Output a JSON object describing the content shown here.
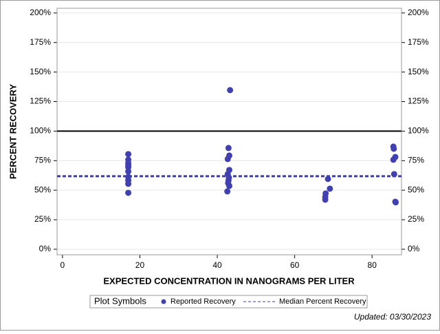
{
  "chart_data": {
    "type": "scatter",
    "x_label": "EXPECTED CONCENTRATION IN NANOGRAMS PER LITER",
    "y_label": "PERCENT RECOVERY",
    "xlim": [
      -1.4,
      87.6
    ],
    "xticks": [
      0,
      20,
      40,
      60,
      80
    ],
    "ylim": [
      -4.7,
      204
    ],
    "yticks": [
      {
        "value": 0,
        "label": "0%"
      },
      {
        "value": 25,
        "label": "25%"
      },
      {
        "value": 50,
        "label": "50%"
      },
      {
        "value": 75,
        "label": "75%"
      },
      {
        "value": 100,
        "label": "100%"
      },
      {
        "value": 125,
        "label": "125%"
      },
      {
        "value": 150,
        "label": "150%"
      },
      {
        "value": 175,
        "label": "175%"
      },
      {
        "value": 200,
        "label": "200%"
      }
    ],
    "y2lim": [
      -4.7,
      204
    ],
    "y2ticks": [
      {
        "value": 0,
        "label": "0%"
      },
      {
        "value": 25,
        "label": "25%"
      },
      {
        "value": 50,
        "label": "50%"
      },
      {
        "value": 75,
        "label": "75%"
      },
      {
        "value": 100,
        "label": "100%"
      },
      {
        "value": 125,
        "label": "125%"
      },
      {
        "value": 150,
        "label": "150%"
      },
      {
        "value": 175,
        "label": "175%"
      },
      {
        "value": 200,
        "label": "200%"
      }
    ],
    "grid": true,
    "series": [
      {
        "name": "Reported Recovery",
        "color": "#4040b0",
        "x": [
          17,
          17,
          17,
          17,
          17,
          17,
          17,
          17,
          17,
          17,
          43.3,
          42.9,
          43.1,
          42.7,
          43.1,
          42.7,
          43.0,
          42.9,
          42.8,
          43.1,
          42.6,
          68.6,
          69.1,
          68.0,
          67.9,
          67.9,
          85.5,
          85.6,
          86.0,
          85.5,
          85.7,
          86.0,
          86.1
        ],
        "values": [
          80.5,
          75.8,
          72.9,
          71.1,
          69.4,
          65.9,
          61.2,
          58.3,
          55.4,
          47.8,
          134.7,
          85.7,
          79.3,
          76.4,
          67.1,
          63.6,
          60.6,
          58.3,
          56,
          53.6,
          49,
          59.5,
          51.3,
          47.2,
          44.3,
          42,
          86.9,
          85.1,
          78.1,
          75.8,
          63.6,
          40.2,
          39.7
        ]
      }
    ],
    "reference_line": {
      "value": 100,
      "color": "#000000"
    },
    "median_line": {
      "name": "Median Percent Recovery",
      "value": 61.8,
      "color": "#3b3bb0"
    },
    "legend_title": "Plot Symbols",
    "footnote": "Updated: 03/30/2023"
  }
}
